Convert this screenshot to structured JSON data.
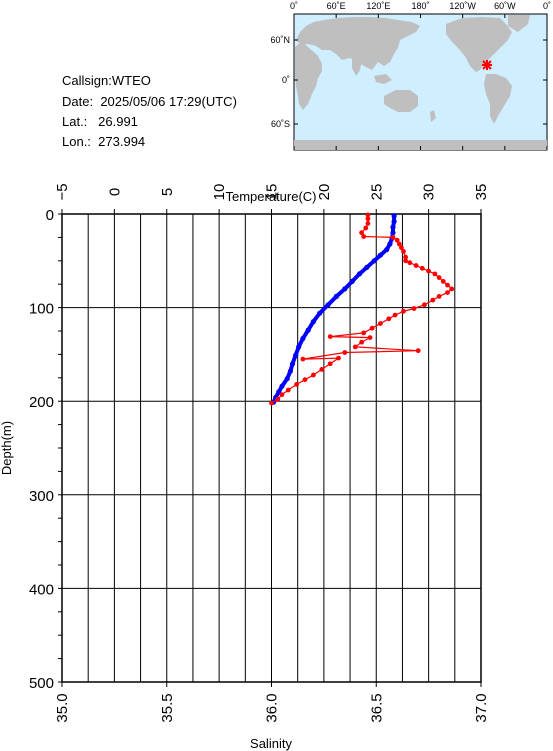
{
  "station": {
    "callsign_label": "Callsign:",
    "callsign": "WTEO",
    "date_label": "Date:",
    "date": "2025/05/06 17:29(UTC)",
    "lat_label": "Lat.:",
    "lat": "26.991",
    "lon_label": "Lon.:",
    "lon": "273.994"
  },
  "map": {
    "lon_ticks": [
      "0˚",
      "60˚E",
      "120˚E",
      "180˚",
      "120˚W",
      "60˚W",
      "0˚"
    ],
    "lat_ticks": [
      "60˚N",
      "0˚",
      "60˚S"
    ],
    "ocean_color": "#cfeeff",
    "land_color": "#bfbfbf",
    "marker_color": "#ff0000"
  },
  "chart_data": {
    "type": "scatter",
    "ylabel": "Depth(m)",
    "ylim": [
      0,
      500
    ],
    "y_ticks": [
      0,
      100,
      200,
      300,
      400,
      500
    ],
    "top_axis": {
      "label": "Temperature(C)",
      "range": [
        -5,
        35
      ],
      "ticks": [
        -5,
        0,
        5,
        10,
        15,
        20,
        25,
        30,
        35
      ]
    },
    "bottom_axis": {
      "label": "Salinity",
      "range": [
        35.0,
        37.0
      ],
      "ticks": [
        "35.0",
        "35.5",
        "36.0",
        "36.5",
        "37.0"
      ]
    },
    "grid": true,
    "series": [
      {
        "quantity": "temperature",
        "axis": "top",
        "color": "#0000ff",
        "points": [
          [
            26.7,
            2
          ],
          [
            26.7,
            8
          ],
          [
            26.6,
            14
          ],
          [
            26.6,
            20
          ],
          [
            26.5,
            26
          ],
          [
            26.3,
            32
          ],
          [
            26.0,
            38
          ],
          [
            25.4,
            44
          ],
          [
            24.8,
            50
          ],
          [
            24.1,
            57
          ],
          [
            23.4,
            64
          ],
          [
            22.7,
            72
          ],
          [
            22.0,
            80
          ],
          [
            21.2,
            88
          ],
          [
            20.4,
            97
          ],
          [
            19.6,
            106
          ],
          [
            19.0,
            115
          ],
          [
            18.5,
            124
          ],
          [
            18.0,
            133
          ],
          [
            17.6,
            142
          ],
          [
            17.3,
            151
          ],
          [
            17.0,
            160
          ],
          [
            16.8,
            168
          ],
          [
            16.5,
            176
          ],
          [
            16.0,
            184
          ],
          [
            15.7,
            190
          ],
          [
            15.4,
            196
          ],
          [
            15.2,
            201
          ]
        ]
      },
      {
        "quantity": "salinity",
        "axis": "bottom",
        "color": "#ff0000",
        "points": [
          [
            36.46,
            1
          ],
          [
            36.46,
            5
          ],
          [
            36.46,
            10
          ],
          [
            36.45,
            15
          ],
          [
            36.43,
            20
          ],
          [
            36.44,
            24
          ],
          [
            36.58,
            25
          ],
          [
            36.6,
            28
          ],
          [
            36.61,
            32
          ],
          [
            36.62,
            36
          ],
          [
            36.63,
            40
          ],
          [
            36.64,
            46
          ],
          [
            36.64,
            50
          ],
          [
            36.66,
            52
          ],
          [
            36.69,
            55
          ],
          [
            36.72,
            58
          ],
          [
            36.75,
            61
          ],
          [
            36.78,
            64
          ],
          [
            36.8,
            68
          ],
          [
            36.82,
            72
          ],
          [
            36.84,
            76
          ],
          [
            36.86,
            80
          ],
          [
            36.84,
            84
          ],
          [
            36.8,
            88
          ],
          [
            36.77,
            92
          ],
          [
            36.73,
            97
          ],
          [
            36.68,
            101
          ],
          [
            36.63,
            104
          ],
          [
            36.59,
            108
          ],
          [
            36.56,
            112
          ],
          [
            36.52,
            117
          ],
          [
            36.48,
            122
          ],
          [
            36.44,
            127
          ],
          [
            36.28,
            131
          ],
          [
            36.47,
            132
          ],
          [
            36.43,
            137
          ],
          [
            36.4,
            142
          ],
          [
            36.7,
            146
          ],
          [
            36.35,
            148
          ],
          [
            36.15,
            155
          ],
          [
            36.32,
            154
          ],
          [
            36.28,
            160
          ],
          [
            36.24,
            166
          ],
          [
            36.2,
            172
          ],
          [
            36.16,
            177
          ],
          [
            36.12,
            182
          ],
          [
            36.08,
            188
          ],
          [
            36.05,
            193
          ],
          [
            36.03,
            198
          ],
          [
            36.0,
            202
          ]
        ]
      }
    ]
  }
}
